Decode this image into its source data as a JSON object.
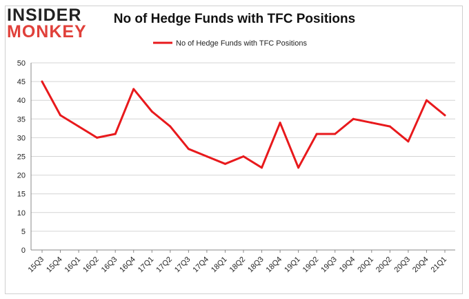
{
  "logo": {
    "line1": "INSIDER",
    "line2": "MONKEY"
  },
  "colors": {
    "series": "#e8191c",
    "grid": "#d4d4d4",
    "text": "#222222"
  },
  "chart_data": {
    "type": "line",
    "title": "No of Hedge Funds with TFC Positions",
    "legend_position": "top-center",
    "grid": true,
    "ylim": [
      0,
      50
    ],
    "yticks": [
      0,
      5,
      10,
      15,
      20,
      25,
      30,
      35,
      40,
      45,
      50
    ],
    "categories": [
      "15Q3",
      "15Q4",
      "16Q1",
      "16Q2",
      "16Q3",
      "16Q4",
      "17Q1",
      "17Q2",
      "17Q3",
      "17Q4",
      "18Q1",
      "18Q2",
      "18Q3",
      "18Q4",
      "19Q1",
      "19Q2",
      "19Q3",
      "19Q4",
      "20Q1",
      "20Q2",
      "20Q3",
      "20Q4",
      "21Q1"
    ],
    "series": [
      {
        "name": "No of Hedge Funds with TFC Positions",
        "values": [
          45,
          36,
          33,
          30,
          31,
          43,
          37,
          33,
          27,
          25,
          23,
          25,
          22,
          34,
          22,
          31,
          31,
          35,
          34,
          33,
          29,
          40,
          36
        ]
      }
    ]
  }
}
